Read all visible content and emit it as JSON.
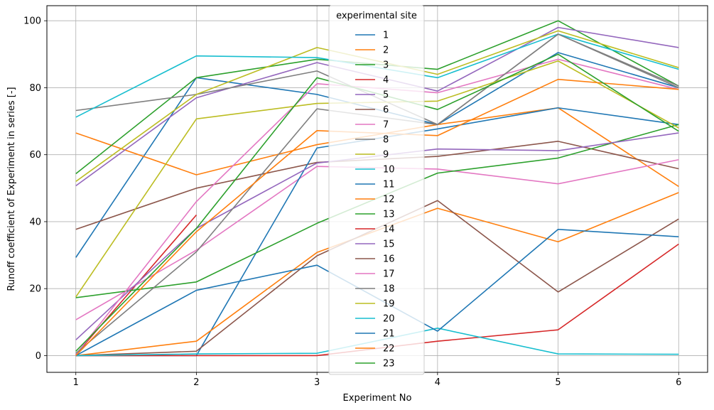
{
  "chart_data": {
    "type": "line",
    "title": "",
    "xlabel": "Experiment No",
    "ylabel": "Runoff coefficient of Experiment in series [-]",
    "x": [
      1,
      2,
      3,
      4,
      5,
      6
    ],
    "xticks": [
      "1",
      "2",
      "3",
      "4",
      "5",
      "6"
    ],
    "yticks": [
      "0",
      "20",
      "40",
      "60",
      "80",
      "100"
    ],
    "xlim": [
      0.76,
      6.24
    ],
    "ylim": [
      -5,
      104.5
    ],
    "grid": true,
    "legend": {
      "title": "experimental site",
      "placement": "upper center"
    },
    "series": [
      {
        "name": "1",
        "color": "#1f77b4",
        "values": [
          29.3,
          83.0,
          78.0,
          69.0,
          90.5,
          80.0
        ]
      },
      {
        "name": "2",
        "color": "#ff7f0e",
        "values": [
          66.5,
          54.0,
          63.0,
          69.0,
          74.0,
          50.5
        ]
      },
      {
        "name": "3",
        "color": "#2ca02c",
        "values": [
          54.3,
          83.0,
          88.5,
          85.5,
          100.0,
          80.5
        ]
      },
      {
        "name": "4",
        "color": "#d62728",
        "values": [
          0.3,
          42.0,
          null,
          null,
          null,
          null
        ]
      },
      {
        "name": "5",
        "color": "#9467bd",
        "values": [
          50.7,
          77.0,
          87.5,
          79.0,
          98.0,
          92.0
        ]
      },
      {
        "name": "6",
        "color": "#8c564b",
        "values": [
          37.7,
          50.0,
          57.7,
          59.5,
          64.0,
          55.8
        ]
      },
      {
        "name": "7",
        "color": "#e377c2",
        "values": [
          10.7,
          31.5,
          56.5,
          55.7,
          51.3,
          58.5
        ]
      },
      {
        "name": "8",
        "color": "#7f7f7f",
        "values": [
          73.2,
          78.0,
          85.0,
          69.0,
          96.0,
          80.0
        ]
      },
      {
        "name": "9",
        "color": "#bcbd22",
        "values": [
          52.0,
          78.0,
          92.0,
          84.0,
          97.0,
          86.0
        ]
      },
      {
        "name": "10",
        "color": "#17becf",
        "values": [
          71.2,
          89.5,
          89.0,
          83.0,
          96.0,
          85.5
        ]
      },
      {
        "name": "11",
        "color": "#1f77b4",
        "values": [
          0.0,
          0.0,
          62.0,
          67.7,
          74.0,
          69.0
        ]
      },
      {
        "name": "12",
        "color": "#ff7f0e",
        "values": [
          0.0,
          4.3,
          30.8,
          44.0,
          34.0,
          48.7
        ]
      },
      {
        "name": "13",
        "color": "#2ca02c",
        "values": [
          17.3,
          22.0,
          39.5,
          54.5,
          59.0,
          69.0
        ]
      },
      {
        "name": "14",
        "color": "#d62728",
        "values": [
          0.0,
          0.0,
          0.0,
          4.3,
          7.7,
          33.3
        ]
      },
      {
        "name": "15",
        "color": "#9467bd",
        "values": [
          4.7,
          38.0,
          57.5,
          61.7,
          61.2,
          66.5
        ]
      },
      {
        "name": "16",
        "color": "#8c564b",
        "values": [
          0.0,
          1.3,
          29.8,
          46.3,
          19.0,
          40.8
        ]
      },
      {
        "name": "17",
        "color": "#e377c2",
        "values": [
          0.3,
          46.0,
          81.2,
          78.5,
          88.5,
          79.5
        ]
      },
      {
        "name": "18",
        "color": "#7f7f7f",
        "values": [
          0.7,
          31.0,
          73.7,
          69.0,
          96.0,
          80.5
        ]
      },
      {
        "name": "19",
        "color": "#bcbd22",
        "values": [
          17.5,
          70.7,
          75.3,
          76.0,
          88.0,
          68.0
        ]
      },
      {
        "name": "20",
        "color": "#17becf",
        "values": [
          0.0,
          0.5,
          0.7,
          8.2,
          0.5,
          0.4
        ]
      },
      {
        "name": "21",
        "color": "#1f77b4",
        "values": [
          0.0,
          19.5,
          27.0,
          7.3,
          37.7,
          35.5
        ]
      },
      {
        "name": "22",
        "color": "#ff7f0e",
        "values": [
          0.0,
          37.0,
          67.2,
          65.7,
          82.5,
          79.5
        ]
      },
      {
        "name": "23",
        "color": "#2ca02c",
        "values": [
          1.3,
          38.0,
          83.0,
          73.5,
          90.0,
          67.0
        ]
      }
    ]
  }
}
